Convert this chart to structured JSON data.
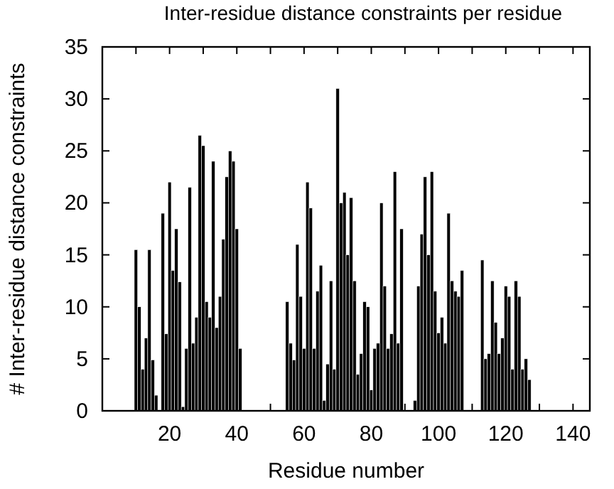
{
  "chart_data": {
    "type": "bar",
    "title": "Inter-residue distance constraints per residue",
    "xlabel": "Residue number",
    "ylabel": "# Inter-residue distance constraints",
    "x": [
      10,
      11,
      12,
      13,
      14,
      15,
      16,
      17,
      18,
      19,
      20,
      21,
      22,
      23,
      24,
      25,
      26,
      27,
      28,
      29,
      30,
      31,
      32,
      33,
      34,
      35,
      36,
      37,
      38,
      39,
      40,
      41,
      55,
      56,
      57,
      58,
      59,
      60,
      61,
      62,
      63,
      64,
      65,
      66,
      67,
      68,
      69,
      70,
      71,
      72,
      73,
      74,
      75,
      76,
      77,
      78,
      79,
      80,
      81,
      82,
      83,
      84,
      85,
      86,
      87,
      88,
      89,
      93,
      94,
      95,
      96,
      97,
      98,
      99,
      100,
      101,
      102,
      103,
      104,
      105,
      106,
      107,
      113,
      114,
      115,
      116,
      117,
      118,
      119,
      120,
      121,
      122,
      123,
      124,
      125,
      126,
      127
    ],
    "values": [
      15.5,
      10,
      4,
      7,
      15.5,
      4.9,
      1.5,
      0,
      19,
      7.4,
      22,
      13.5,
      17.5,
      12.4,
      0.4,
      6,
      21.5,
      6.5,
      9,
      26.5,
      25.5,
      10.5,
      9,
      24,
      8,
      11,
      16.5,
      22.5,
      25,
      24,
      17.5,
      6,
      10.5,
      6.5,
      4.9,
      16,
      11,
      6,
      22,
      19.5,
      6,
      11.5,
      14,
      1,
      4.5,
      12.5,
      4,
      31,
      20,
      21,
      15,
      20.5,
      12.5,
      3.5,
      5.5,
      10.5,
      10,
      2,
      6,
      6.5,
      20,
      12,
      6,
      7.4,
      23,
      6.5,
      17.5,
      1,
      12,
      17,
      22.5,
      15,
      23,
      11.5,
      7.5,
      9,
      6.5,
      19,
      12.5,
      11.5,
      11,
      13.5,
      14.5,
      5,
      5.5,
      12.5,
      8.5,
      5.5,
      7,
      12,
      11,
      4,
      12.5,
      11,
      4,
      5,
      3
    ],
    "color": "#000000",
    "xlim": [
      0,
      145
    ],
    "xticks": [
      {
        "value": 10,
        "label": null
      },
      20,
      {
        "value": 30,
        "label": null
      },
      40,
      {
        "value": 50,
        "label": null
      },
      60,
      {
        "value": 70,
        "label": null
      },
      80,
      {
        "value": 90,
        "label": null
      },
      100,
      {
        "value": 110,
        "label": null
      },
      120,
      {
        "value": 130,
        "label": null
      },
      140
    ],
    "ylim": [
      0,
      35
    ],
    "yticks": [
      0,
      5,
      10,
      15,
      20,
      25,
      30,
      35
    ],
    "grid": false
  }
}
